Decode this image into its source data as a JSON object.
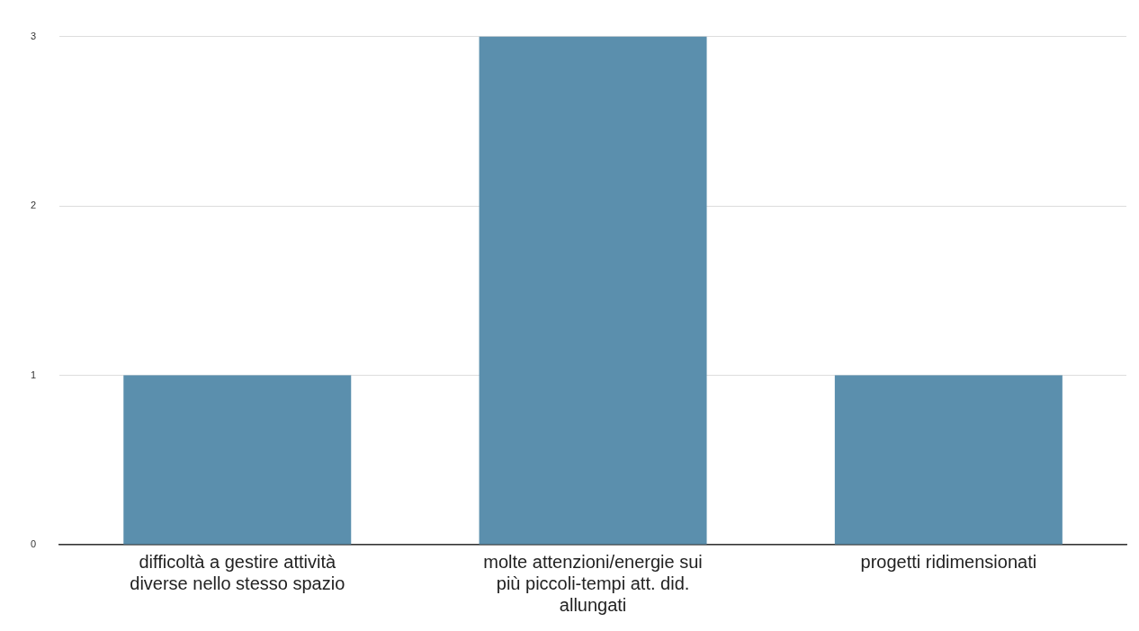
{
  "chart_data": {
    "type": "bar",
    "categories": [
      "difficoltà a gestire attività diverse nello stesso spazio",
      "molte attenzioni/energie sui più piccoli-tempi att. did. allungati",
      "progetti ridimensionati"
    ],
    "values": [
      1,
      3,
      1
    ],
    "color": "#5b8fad",
    "ylim": [
      0,
      3
    ],
    "yticks": [
      0,
      1,
      2,
      3
    ],
    "grid": "y",
    "legend": false
  }
}
